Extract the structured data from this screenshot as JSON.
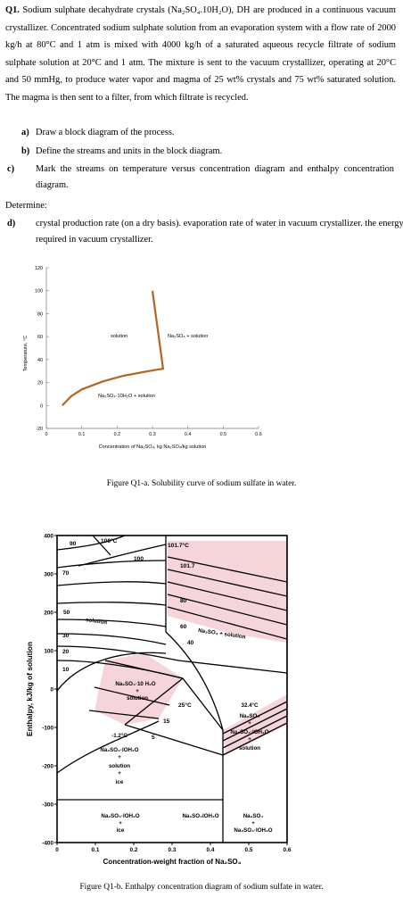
{
  "question": {
    "label": "Q1.",
    "intro": "Sodium sulphate decahydrate crystals (Na₂SO₄.10H₂O), DH are produced in a continuous vacuum crystallizer. Concentrated sodium sulphate solution from an evaporation system with a flow rate of 2000 kg/h at 80°C and 1 atm is mixed with 4000 kg/h of a saturated aqueous recycle filtrate of sodium sulphate solution at 20°C and 1 atm. The mixture is sent to the vacuum crystallizer, operating at 20°C and 50 mmHg, to produce water vapor and magma of 25 wt% crystals and 75 wt% saturated solution. The magma is then sent to a filter, from which filtrate is recycled.",
    "items": [
      {
        "key": "a)",
        "text": "Draw a block diagram of the process."
      },
      {
        "key": "b)",
        "text": "Define the streams and units in the block diagram."
      },
      {
        "key": "c)",
        "text": "Mark the streams on temperature versus concentration diagram and enthalpy concentration diagram."
      }
    ],
    "determine": "Determine:",
    "item_d": {
      "key": "d)",
      "text": "crystal production rate (on a dry basis). evaporation rate of water in vacuum crystallizer. the energy required in vacuum crystallizer."
    }
  },
  "figure_a": {
    "caption": "Figure Q1-a. Solubility curve of sodium sulfate in water.",
    "chart_data": {
      "type": "line",
      "xlabel": "Concentration of Na₂SO₄, kg Na₂SO₄/kg solution",
      "ylabel": "Temperature, °C",
      "xlim": [
        0,
        0.6
      ],
      "ylim": [
        -20,
        120
      ],
      "x_ticks": [
        "0",
        "0.1",
        "0.2",
        "0.3",
        "0.4",
        "0.5",
        "0.6"
      ],
      "y_ticks": [
        "-20",
        "0",
        "20",
        "40",
        "60",
        "80",
        "100",
        "120"
      ],
      "series": [
        {
          "points": [
            [
              0.045,
              0
            ],
            [
              0.07,
              8
            ],
            [
              0.1,
              14
            ],
            [
              0.16,
              21
            ],
            [
              0.22,
              26
            ],
            [
              0.29,
              30
            ],
            [
              0.33,
              32
            ],
            [
              0.3,
              100
            ]
          ]
        }
      ],
      "region_labels": [
        "solution",
        "Na₂SO₄ + solution",
        "Na₂SO₄·10H₂O + solution"
      ],
      "line_color": "#b5651d"
    }
  },
  "figure_b": {
    "caption": "Figure Q1-b. Enthalpy concentration diagram of sodium sulfate in water.",
    "chart_data": {
      "type": "line",
      "xlabel": "Concentration-weight fraction of Na₂SO₄",
      "ylabel": "Enthalpy, kJ/kg of solution",
      "xlim": [
        0,
        0.6
      ],
      "ylim": [
        -400,
        400
      ],
      "x_ticks": [
        "0",
        "0.1",
        "0.2",
        "0.3",
        "0.4",
        "0.5",
        "0.6"
      ],
      "y_ticks": [
        "-400",
        "-300",
        "-200",
        "-100",
        "0",
        "100",
        "200",
        "300",
        "400"
      ],
      "isotherm_labels": [
        "90",
        "100°C",
        "100",
        "101.7°C",
        "101.7",
        "80",
        "70",
        "60",
        "50",
        "40",
        "30",
        "20",
        "10",
        "25°C",
        "15",
        "5"
      ],
      "region_labels": {
        "solution": "solution",
        "na2so4_solution": "Na₂SO₄ + solution",
        "dh_solution": [
          "Na₂SO₄·10 H₂O",
          "+",
          "solution"
        ],
        "triple_32": [
          "32.4°C",
          "Na₂SO₄",
          "+",
          "Na₂SO₄·IOH₂O",
          "+",
          "solution"
        ],
        "minus12": [
          "-1.2°C",
          "Na₂SO₄·IOH₂O",
          "+",
          "solution",
          "+",
          "ice"
        ],
        "dh_ice": [
          "Na₂SO₄·IOH₂O",
          "+",
          "ice"
        ],
        "dh_only": "Na₂SO₄IOH₂O",
        "na2so4_dh": [
          "Na₂SO₄",
          "+",
          "Na₂SO₄·IOH₂O"
        ]
      },
      "shade_color": "#f5d5da"
    }
  }
}
